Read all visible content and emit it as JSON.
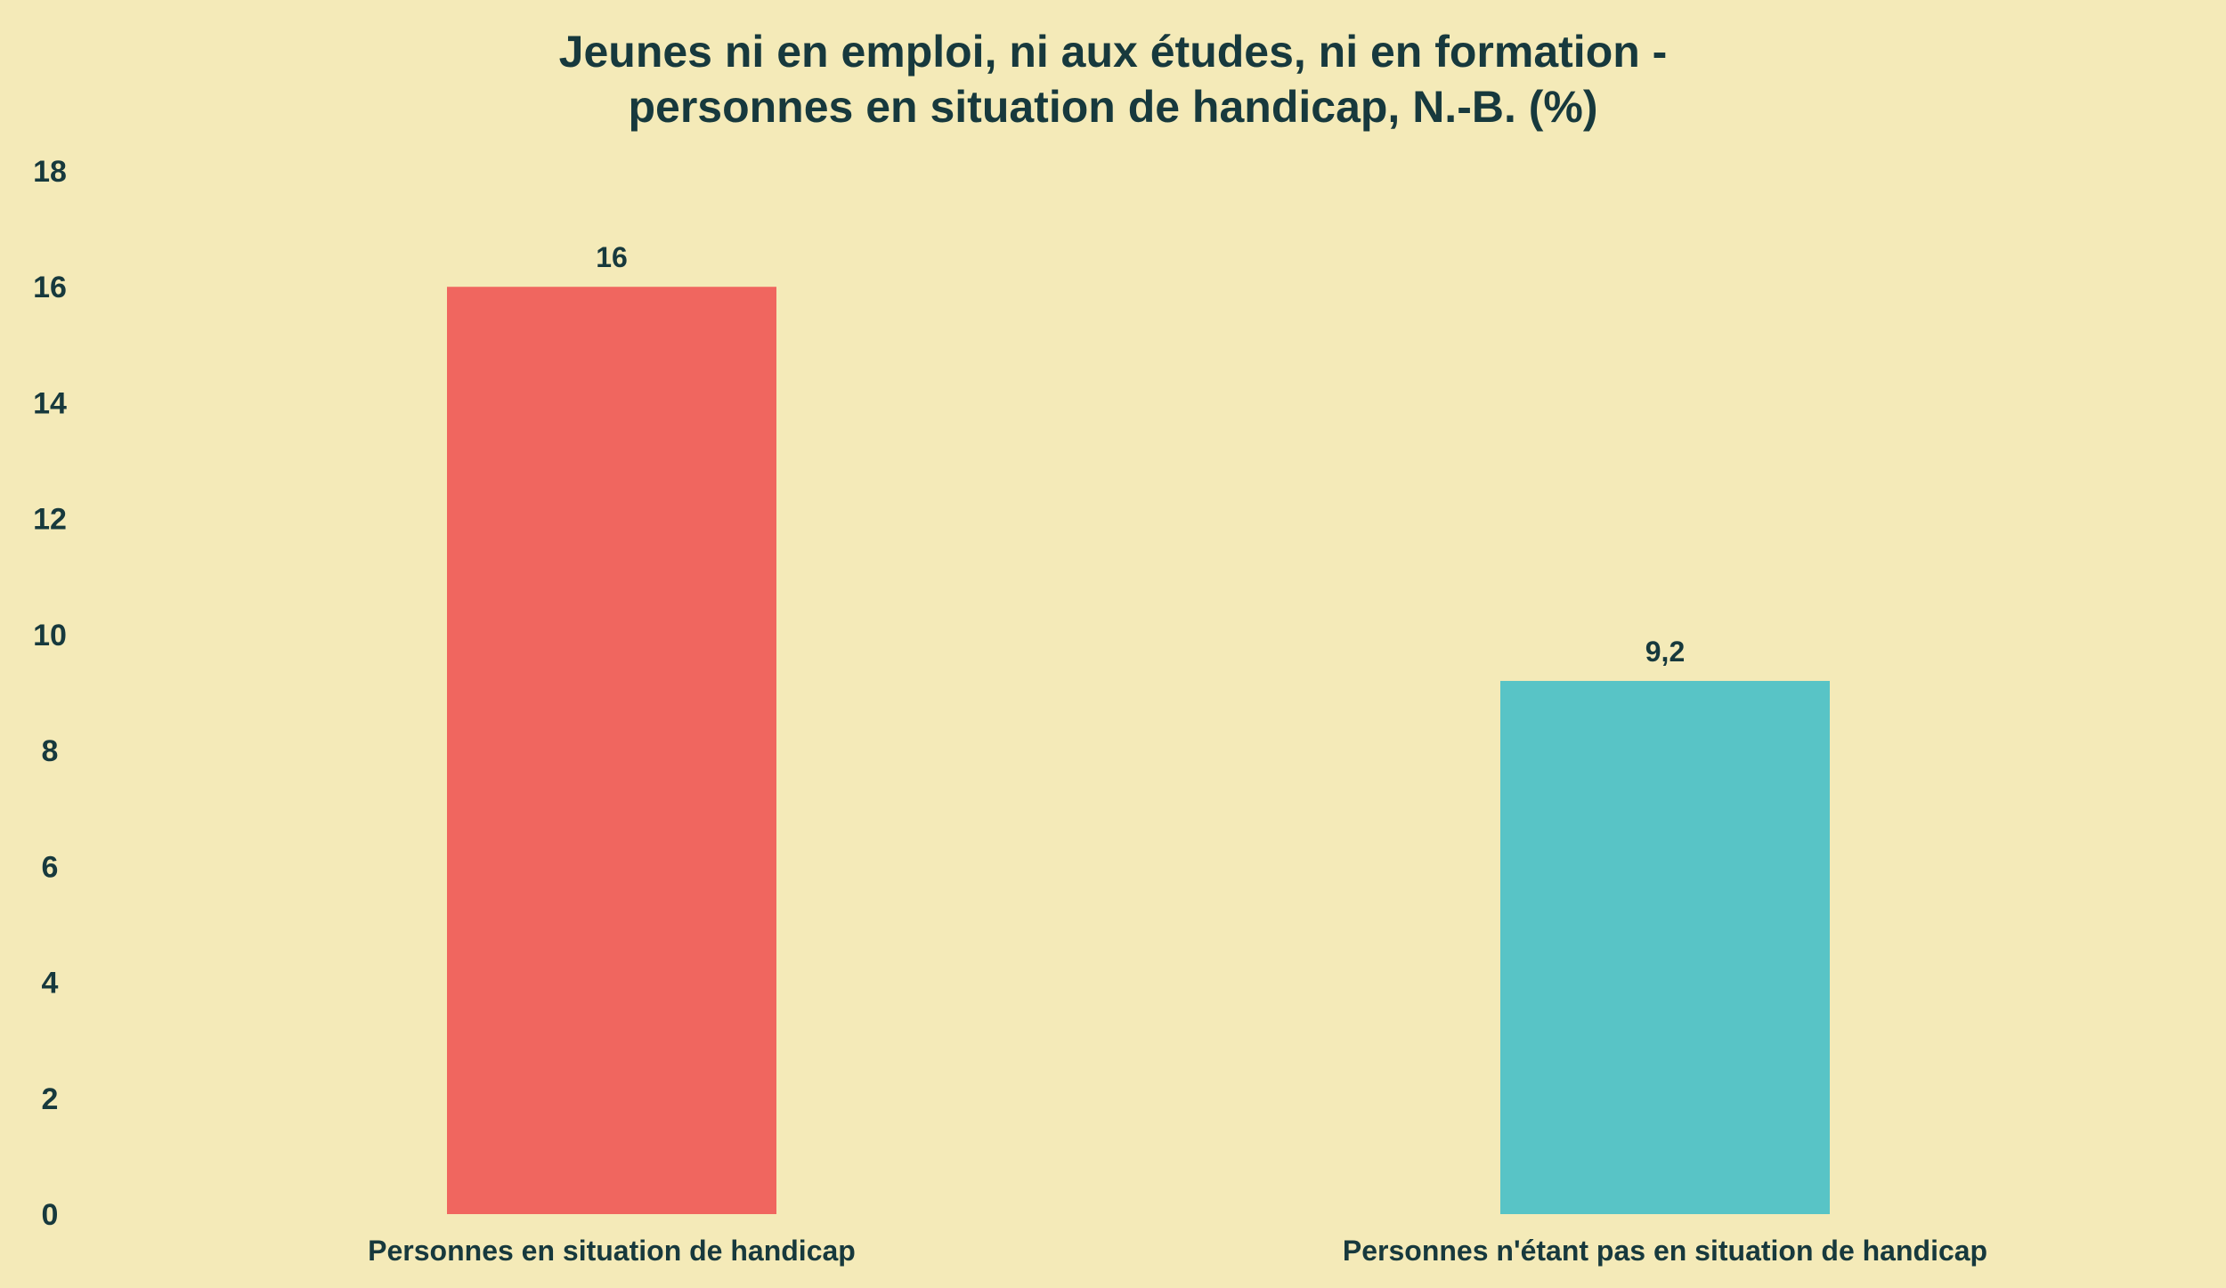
{
  "chart_data": {
    "type": "bar",
    "title_lines": [
      "Jeunes ni en emploi, ni aux études, ni en formation -",
      "personnes en situation de handicap, N.-B. (%)"
    ],
    "categories": [
      "Personnes en situation de handicap",
      "Personnes n'étant pas en situation de handicap"
    ],
    "values": [
      16,
      9.2
    ],
    "data_labels": [
      "16",
      "9,2"
    ],
    "colors": [
      "#F0665F",
      "#58C4C6"
    ],
    "ylim": [
      0,
      18
    ],
    "yticks": [
      0,
      2,
      4,
      6,
      8,
      10,
      12,
      14,
      16,
      18
    ],
    "grid": false,
    "legend": "none",
    "xlabel": "",
    "ylabel": ""
  },
  "colors": {
    "background": "#F4EAB8",
    "text": "#17393D"
  }
}
